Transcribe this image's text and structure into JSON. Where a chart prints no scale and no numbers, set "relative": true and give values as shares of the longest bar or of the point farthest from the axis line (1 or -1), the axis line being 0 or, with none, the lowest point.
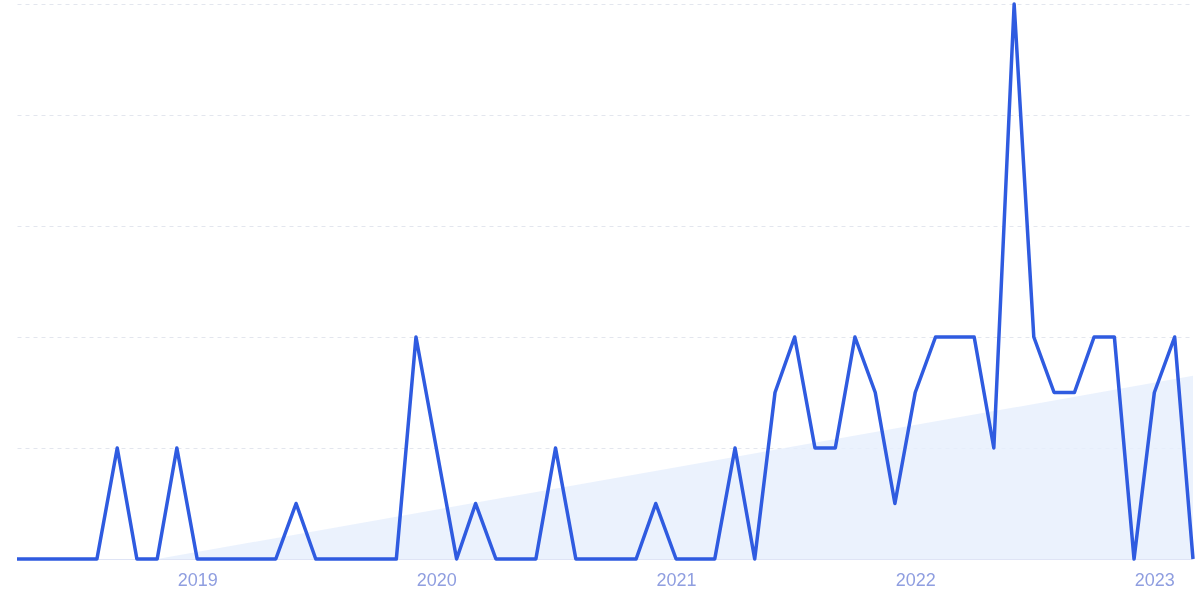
{
  "chart_data": {
    "type": "line",
    "relative": true,
    "x": [
      "2018-04",
      "2018-05",
      "2018-06",
      "2018-07",
      "2018-08",
      "2018-09",
      "2018-10",
      "2018-11",
      "2018-12",
      "2019-01",
      "2019-02",
      "2019-03",
      "2019-04",
      "2019-05",
      "2019-06",
      "2019-07",
      "2019-08",
      "2019-09",
      "2019-10",
      "2019-11",
      "2019-12",
      "2020-01",
      "2020-02",
      "2020-03",
      "2020-04",
      "2020-05",
      "2020-06",
      "2020-07",
      "2020-08",
      "2020-09",
      "2020-10",
      "2020-11",
      "2020-12",
      "2021-01",
      "2021-02",
      "2021-03",
      "2021-04",
      "2021-05",
      "2021-06",
      "2021-07",
      "2021-08",
      "2021-09",
      "2021-10",
      "2021-11",
      "2021-12",
      "2022-01",
      "2022-02",
      "2022-03",
      "2022-04",
      "2022-05",
      "2022-06",
      "2022-07",
      "2022-08",
      "2022-09",
      "2022-10",
      "2022-11",
      "2022-12",
      "2023-01",
      "2023-02",
      "2023-03"
    ],
    "series": [
      {
        "type": "area",
        "color": "#e6effc",
        "x": [
          "2018-11",
          "2023-03"
        ],
        "values": [
          0,
          0.33
        ]
      },
      {
        "color": "#2f5be0",
        "values": [
          0,
          0,
          0,
          0,
          0,
          0.2,
          0,
          0,
          0.2,
          0,
          0,
          0,
          0,
          0,
          0.1,
          0,
          0,
          0,
          0,
          0,
          0.4,
          0.2,
          0,
          0.1,
          0,
          0,
          0,
          0.2,
          0,
          0,
          0,
          0,
          0.1,
          0,
          0,
          0,
          0.2,
          0,
          0.3,
          0.4,
          0.2,
          0.2,
          0.4,
          0.3,
          0.1,
          0.3,
          0.4,
          0.4,
          0.4,
          0.2,
          1,
          0.4,
          0.3,
          0.3,
          0.4,
          0.4,
          0,
          0.3,
          0.4,
          0
        ]
      }
    ],
    "xlim": [
      "2018-04",
      "2023-03"
    ],
    "xticks": [
      "2019",
      "2020",
      "2021",
      "2022",
      "2023"
    ],
    "grid": "y",
    "marker": "none",
    "line_style": "solid"
  }
}
